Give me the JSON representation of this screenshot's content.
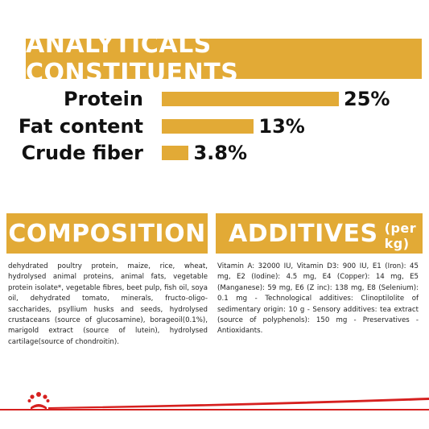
{
  "analytics": {
    "title": "ANALYTICALS CONSTITUENTS",
    "rows": [
      {
        "label": "Protein",
        "value": "25%",
        "percent": 25
      },
      {
        "label": "Fat content",
        "value": "13%",
        "percent": 13
      },
      {
        "label": "Crude fiber",
        "value": "3.8%",
        "percent": 3.8
      }
    ]
  },
  "composition": {
    "title": "COMPOSITION",
    "text": "dehydrated poultry protein, maize, rice, wheat, hydrolysed animal proteins, animal fats, vegetable protein isolate*, vegetable fibres, beet pulp, fish oil, soya oil, dehydrated tomato, minerals, fructo-oligo-saccharides, psyllium husks and seeds, hydrolysed crustaceans (source of glucosamine), borageoil(0.1%), marigold extract (source of lutein), hydrolysed cartilage(source of chondroitin)."
  },
  "additives": {
    "title": "ADDITIVES",
    "subtitle": "(per kg)",
    "text": "Vitamin A: 32000 IU, Vitamin D3: 900 IU, E1 (Iron): 45 mg, E2 (Iodine): 4.5 mg, E4 (Copper): 14 mg, E5 (Manganese): 59 mg, E6 (Z inc): 138 mg, E8 (Selenium): 0.1 mg - Technological additives: Clinoptilolite of sedimentary origin: 10 g - Sensory additives: tea extract (source of polyphenols): 150 mg - Preservatives - Antioxidants."
  },
  "colors": {
    "accent": "#e2aa36",
    "brand_red": "#d6201f"
  },
  "icons": {
    "logo": "royal-canin-crown-icon"
  }
}
